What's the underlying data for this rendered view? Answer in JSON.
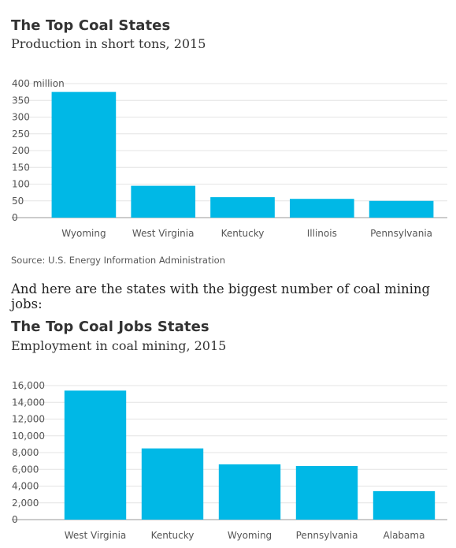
{
  "chart_data": [
    {
      "type": "bar",
      "title": "The Top Coal States",
      "subtitle": "Production in short tons, 2015",
      "categories": [
        "Wyoming",
        "West Virginia",
        "Kentucky",
        "Illinois",
        "Pennsylvania"
      ],
      "values": [
        375,
        95,
        61,
        56,
        50
      ],
      "ylim": [
        0,
        400
      ],
      "yticks": [
        {
          "value": 0,
          "label": "0"
        },
        {
          "value": 50,
          "label": "50"
        },
        {
          "value": 100,
          "label": "100"
        },
        {
          "value": 150,
          "label": "150"
        },
        {
          "value": 200,
          "label": "200"
        },
        {
          "value": 250,
          "label": "250"
        },
        {
          "value": 300,
          "label": "300"
        },
        {
          "value": 350,
          "label": "350"
        },
        {
          "value": 400,
          "label": "400 million"
        }
      ],
      "grid": true,
      "color": "#00b8e6",
      "source": "Source: U.S. Energy Information Administration"
    },
    {
      "type": "bar",
      "title": "The Top Coal Jobs States",
      "subtitle": "Employment in coal mining, 2015",
      "categories": [
        "West Virginia",
        "Kentucky",
        "Wyoming",
        "Pennsylvania",
        "Alabama"
      ],
      "values": [
        15400,
        8500,
        6600,
        6400,
        3400
      ],
      "ylim": [
        0,
        16000
      ],
      "yticks": [
        {
          "value": 0,
          "label": "0"
        },
        {
          "value": 2000,
          "label": "2,000"
        },
        {
          "value": 4000,
          "label": "4,000"
        },
        {
          "value": 6000,
          "label": "6,000"
        },
        {
          "value": 8000,
          "label": "8,000"
        },
        {
          "value": 10000,
          "label": "10,000"
        },
        {
          "value": 12000,
          "label": "12,000"
        },
        {
          "value": 14000,
          "label": "14,000"
        },
        {
          "value": 16000,
          "label": "16,000"
        }
      ],
      "grid": true,
      "color": "#00b8e6"
    }
  ],
  "intermission": "And here are the states with the biggest number of coal mining jobs:"
}
